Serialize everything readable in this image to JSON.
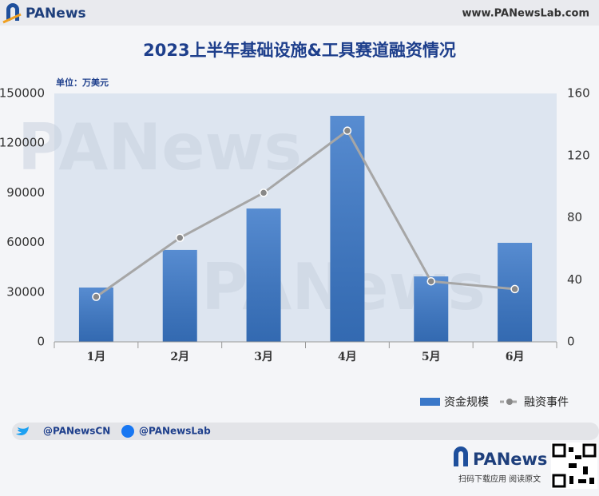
{
  "branding": {
    "logo": "PANews",
    "url": "www.PANewsLab.com",
    "watermark": "PANews",
    "twitter": "@PANewsCN",
    "facebook": "@PANewsLab",
    "qr_caption": "扫码下载应用 阅读原文"
  },
  "chart_data": {
    "type": "bar",
    "title": "2023上半年基础设施&工具赛道融资情况",
    "unit_label": "单位：万美元",
    "categories": [
      "1月",
      "2月",
      "3月",
      "4月",
      "5月",
      "6月"
    ],
    "series": [
      {
        "name": "资金规模",
        "color": "#3a78c9",
        "values": [
          32800,
          55500,
          80500,
          136500,
          39500,
          59800
        ]
      },
      {
        "name": "融资事件",
        "type": "line",
        "axis": "y2",
        "color": "#a6a6a6",
        "values": [
          29,
          67,
          96,
          136,
          39,
          34
        ]
      }
    ],
    "ylim": [
      0,
      150000
    ],
    "yticks": [
      0,
      30000,
      60000,
      90000,
      120000,
      150000
    ],
    "y2lim": [
      0,
      160
    ],
    "y2ticks": [
      0,
      40,
      80,
      120,
      160
    ],
    "grid": false,
    "legend": "bottom-right"
  }
}
